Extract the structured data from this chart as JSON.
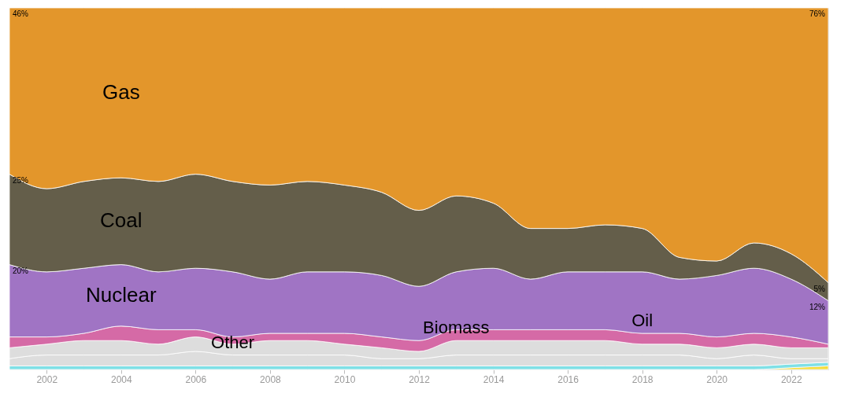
{
  "chart_data": {
    "type": "area",
    "stacked": true,
    "tick_labels": "x",
    "ylim": [
      0,
      100
    ],
    "x": [
      2001,
      2002,
      2003,
      2004,
      2005,
      2006,
      2007,
      2008,
      2009,
      2010,
      2011,
      2012,
      2013,
      2014,
      2015,
      2016,
      2017,
      2018,
      2019,
      2020,
      2021,
      2022,
      2023
    ],
    "xlim": [
      2001,
      2023
    ],
    "xticks": [
      2002,
      2004,
      2006,
      2008,
      2010,
      2012,
      2014,
      2016,
      2018,
      2020,
      2022
    ],
    "series": [
      {
        "color": "#f5dc3c",
        "values": [
          0,
          0,
          0,
          0,
          0,
          0,
          0,
          0,
          0,
          0,
          0,
          0,
          0,
          0,
          0,
          0,
          0,
          0,
          0,
          0,
          0,
          0.5,
          1
        ]
      },
      {
        "color": "#7fe0e6",
        "values": [
          1,
          1,
          1,
          1,
          1,
          1,
          1,
          1,
          1,
          1,
          1,
          1,
          1,
          1,
          1,
          1,
          1,
          1,
          1,
          1,
          1,
          1,
          1
        ]
      },
      {
        "name": "Other",
        "color": "#dddddd",
        "values": [
          2,
          3,
          3,
          3,
          3,
          4,
          3,
          3,
          3,
          3,
          2,
          2,
          3,
          3,
          3,
          3,
          3,
          3,
          3,
          2,
          3,
          1.5,
          1
        ]
      },
      {
        "name": "Biomass",
        "color": "#dddddd",
        "values": [
          3,
          3,
          4,
          4,
          3,
          4,
          3,
          4,
          4,
          3,
          3,
          2,
          4,
          4,
          4,
          4,
          4,
          3,
          3,
          3,
          3,
          3,
          3
        ]
      },
      {
        "name": "Oil",
        "color": "#d56aa6",
        "values": [
          3,
          2,
          2,
          4,
          4,
          2,
          2,
          2,
          2,
          3,
          3,
          3,
          3,
          3,
          3,
          3,
          3,
          3,
          3,
          3,
          3,
          3,
          1
        ]
      },
      {
        "name": "Nuclear",
        "color": "#a074c4",
        "values": [
          20,
          18,
          18,
          17,
          16,
          17,
          18,
          15,
          17,
          17,
          17,
          15,
          16,
          17,
          14,
          16,
          16,
          17,
          15,
          17,
          18,
          16,
          12
        ],
        "value_labels": [
          "20%",
          null,
          null,
          null,
          null,
          null,
          null,
          null,
          null,
          null,
          null,
          null,
          null,
          null,
          null,
          null,
          null,
          null,
          null,
          null,
          null,
          null,
          "12%"
        ]
      },
      {
        "name": "Coal",
        "color": "#645e4a",
        "values": [
          25,
          23,
          24,
          24,
          25,
          26,
          25,
          26,
          25,
          24,
          23,
          21,
          21,
          18,
          14,
          12,
          13,
          12,
          6,
          4,
          7,
          7,
          5
        ],
        "value_labels": [
          "25%",
          null,
          null,
          null,
          null,
          null,
          null,
          null,
          null,
          null,
          null,
          null,
          null,
          null,
          null,
          null,
          null,
          null,
          null,
          null,
          null,
          null,
          "5%"
        ]
      },
      {
        "name": "Gas",
        "color": "#e3962b",
        "values": [
          46,
          50,
          48,
          47,
          48,
          46,
          48,
          49,
          48,
          49,
          51,
          56,
          52,
          54,
          61,
          61,
          60,
          61,
          69,
          70,
          65,
          68,
          76
        ],
        "value_labels": [
          "46%",
          null,
          null,
          null,
          null,
          null,
          null,
          null,
          null,
          null,
          null,
          null,
          null,
          null,
          null,
          null,
          null,
          null,
          null,
          null,
          null,
          null,
          "76%"
        ]
      }
    ]
  }
}
